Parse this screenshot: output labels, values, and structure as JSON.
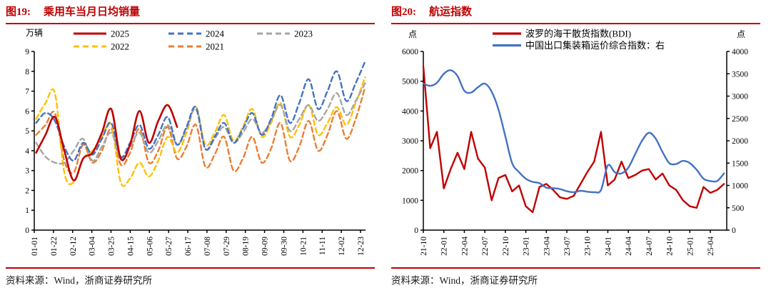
{
  "page": {
    "background": "#ffffff",
    "accent_red": "#C00000",
    "axis_color": "#000000"
  },
  "panels": [
    {
      "fig_label": "图19:",
      "title": "乘用车当月日均销量",
      "source": "资料来源：Wind，浙商证券研究所"
    },
    {
      "fig_label": "图20:",
      "title": "航运指数",
      "source": "资料来源：Wind，浙商证券研究所"
    }
  ],
  "chart_data": [
    {
      "type": "line",
      "title": "乘用车当月日均销量",
      "y_axis": {
        "unit": "万辆",
        "min": 0,
        "max": 9,
        "tick_step": 1
      },
      "x_axis": {
        "tick_labels": [
          "01-01",
          "01-22",
          "02-12",
          "03-04",
          "03-25",
          "04-15",
          "05-06",
          "05-27",
          "06-17",
          "07-08",
          "07-29",
          "08-19",
          "09-09",
          "09-30",
          "10-21",
          "11-11",
          "12-02",
          "12-23"
        ],
        "days_per_tick": 21
      },
      "legend": {
        "position": "top",
        "rows": [
          [
            "2025",
            "2024",
            "2023"
          ],
          [
            "2022",
            "2021"
          ]
        ]
      },
      "series": [
        {
          "name": "2025",
          "color": "#C00000",
          "line_style": "solid",
          "points_per_month": 3,
          "values": [
            3.9,
            4.8,
            5.7,
            4.0,
            2.5,
            3.6,
            3.9,
            4.9,
            6.1,
            3.6,
            4.3,
            6.0,
            4.4,
            5.5,
            6.3,
            5.2
          ]
        },
        {
          "name": "2024",
          "color": "#4472C4",
          "line_style": "dashed",
          "points_per_month": 3,
          "values": [
            5.4,
            5.9,
            5.5,
            4.2,
            3.5,
            4.4,
            3.8,
            4.6,
            5.4,
            3.7,
            4.4,
            5.3,
            4.1,
            4.8,
            5.7,
            4.3,
            5.2,
            6.2,
            4.1,
            4.7,
            5.4,
            4.4,
            5.1,
            5.9,
            4.8,
            5.6,
            6.8,
            5.4,
            6.4,
            7.6,
            6.1,
            7.0,
            8.0,
            6.5,
            7.4,
            8.5
          ]
        },
        {
          "name": "2023",
          "color": "#A6A6A6",
          "line_style": "dashed",
          "points_per_month": 3,
          "values": [
            4.4,
            3.7,
            3.4,
            3.4,
            4.0,
            4.6,
            3.5,
            4.2,
            4.9,
            3.6,
            4.2,
            4.9,
            3.9,
            4.5,
            5.3,
            4.3,
            5.1,
            6.1,
            4.1,
            4.6,
            5.2,
            4.4,
            4.9,
            5.6,
            4.9,
            5.5,
            6.3,
            5.0,
            5.6,
            6.3,
            5.5,
            6.1,
            6.9,
            5.8,
            6.5,
            7.4
          ]
        },
        {
          "name": "2022",
          "color": "#FFC000",
          "line_style": "dashed",
          "points_per_month": 3,
          "values": [
            5.6,
            6.4,
            6.9,
            2.9,
            2.4,
            3.6,
            4.0,
            4.7,
            5.3,
            2.4,
            2.6,
            3.4,
            2.7,
            3.5,
            4.7,
            3.9,
            4.9,
            6.2,
            4.3,
            4.9,
            5.8,
            4.5,
            5.2,
            6.1,
            4.7,
            5.4,
            6.4,
            4.7,
            5.3,
            6.3,
            4.8,
            5.4,
            6.2,
            5.3,
            6.4,
            7.7
          ]
        },
        {
          "name": "2021",
          "color": "#ED7D31",
          "line_style": "dashed",
          "points_per_month": 3,
          "values": [
            4.8,
            5.3,
            5.9,
            3.5,
            2.9,
            4.3,
            3.4,
            4.0,
            5.1,
            3.3,
            3.9,
            5.1,
            3.4,
            4.0,
            5.2,
            3.6,
            4.2,
            5.3,
            3.2,
            3.8,
            4.7,
            3.0,
            3.6,
            4.7,
            3.4,
            4.1,
            5.4,
            3.5,
            4.2,
            5.5,
            4.0,
            4.8,
            6.0,
            4.6,
            5.6,
            7.2
          ]
        }
      ]
    },
    {
      "type": "line",
      "title": "航运指数",
      "y_axis_left": {
        "unit": "点",
        "min": 0,
        "max": 6000,
        "tick_step": 1000
      },
      "y_axis_right": {
        "unit": "点",
        "min": 0,
        "max": 4000,
        "tick_step": 500
      },
      "x_axis": {
        "tick_labels": [
          "21-10",
          "22-01",
          "22-04",
          "22-07",
          "22-10",
          "23-01",
          "23-04",
          "23-07",
          "23-10",
          "24-01",
          "24-04",
          "24-07",
          "24-10",
          "25-01",
          "25-04"
        ],
        "months_per_tick": 3,
        "start": "2021-10",
        "end": "2025-06"
      },
      "legend": {
        "position": "top"
      },
      "series": [
        {
          "name": "波罗的海干散货指数(BDI)",
          "color": "#C00000",
          "axis": "left",
          "line_style": "solid",
          "frequency": "monthly",
          "values": [
            5500,
            2750,
            3300,
            1400,
            2050,
            2600,
            2050,
            3300,
            2400,
            2100,
            1000,
            1750,
            1850,
            1300,
            1500,
            800,
            600,
            1450,
            1550,
            1350,
            1100,
            1050,
            1150,
            1550,
            1950,
            2300,
            3300,
            1500,
            1700,
            2300,
            1750,
            1850,
            2000,
            2050,
            1700,
            1900,
            1500,
            1350,
            1000,
            800,
            750,
            1450,
            1250,
            1350,
            1550
          ]
        },
        {
          "name": "中国出口集装箱运价综合指数：右",
          "color": "#4472C4",
          "axis": "right",
          "line_style": "solid",
          "frequency": "monthly",
          "values": [
            3280,
            3230,
            3300,
            3500,
            3580,
            3450,
            3120,
            3080,
            3200,
            3280,
            3100,
            2700,
            2100,
            1500,
            1300,
            1150,
            1080,
            1050,
            950,
            940,
            920,
            870,
            850,
            880,
            860,
            850,
            900,
            1450,
            1300,
            1270,
            1400,
            1700,
            2000,
            2180,
            2050,
            1750,
            1500,
            1480,
            1550,
            1500,
            1350,
            1150,
            1100,
            1100,
            1270
          ]
        }
      ]
    }
  ]
}
